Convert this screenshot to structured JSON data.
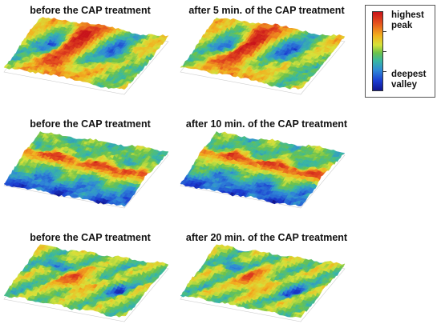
{
  "panels": [
    {
      "title": "before the CAP treatment"
    },
    {
      "title": "after 5 min. of the CAP treatment"
    },
    {
      "title": "before the CAP treatment"
    },
    {
      "title": "after 10 min. of the CAP treatment"
    },
    {
      "title": "before the CAP treatment"
    },
    {
      "title": "after 20 min. of the CAP treatment"
    }
  ],
  "legend": {
    "top_label": "highest\npeak",
    "bottom_label": "deepest\nvalley",
    "colors": {
      "peak": "#c8131a",
      "high": "#f2b01e",
      "mid": "#6cc24a",
      "low": "#2f8ad6",
      "valley": "#101590"
    }
  }
}
